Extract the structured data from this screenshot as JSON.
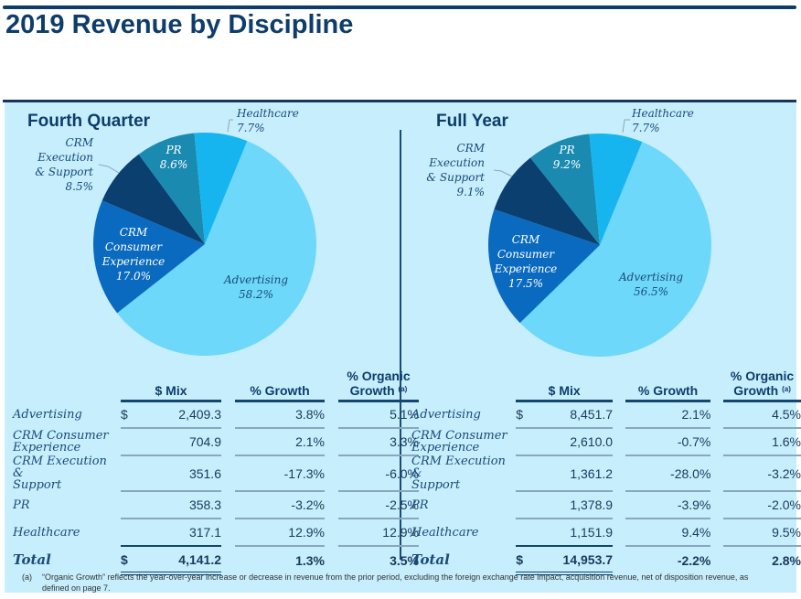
{
  "title": "2019 Revenue by Discipline",
  "colors": {
    "Advertising": "#6ed8fa",
    "CRM Consumer Experience": "#0a6abf",
    "CRM Execution & Support": "#0b3f70",
    "PR": "#1a8ab0",
    "Healthcare": "#17b5f0"
  },
  "chart_data": [
    {
      "type": "pie",
      "title": "Fourth Quarter",
      "categories": [
        "Advertising",
        "CRM Consumer Experience",
        "CRM Execution & Support",
        "PR",
        "Healthcare"
      ],
      "values": [
        58.2,
        17.0,
        8.5,
        8.6,
        7.7
      ],
      "labels": [
        {
          "name": "Advertising",
          "value": "58.2%"
        },
        {
          "name": "CRM\nConsumer\nExperience",
          "value": "17.0%"
        },
        {
          "name": "CRM\nExecution\n& Support",
          "value": "8.5%"
        },
        {
          "name": "PR",
          "value": "8.6%"
        },
        {
          "name": "Healthcare",
          "value": "7.7%"
        }
      ]
    },
    {
      "type": "pie",
      "title": "Full Year",
      "categories": [
        "Advertising",
        "CRM Consumer Experience",
        "CRM Execution & Support",
        "PR",
        "Healthcare"
      ],
      "values": [
        56.5,
        17.5,
        9.1,
        9.2,
        7.7
      ],
      "labels": [
        {
          "name": "Advertising",
          "value": "56.5%"
        },
        {
          "name": "CRM\nConsumer\nExperience",
          "value": "17.5%"
        },
        {
          "name": "CRM\nExecution\n& Support",
          "value": "9.1%"
        },
        {
          "name": "PR",
          "value": "9.2%"
        },
        {
          "name": "Healthcare",
          "value": "7.7%"
        }
      ]
    },
    {
      "type": "table",
      "title": "Fourth Quarter",
      "columns": [
        "$ Mix",
        "% Growth",
        "% Organic Growth (a)"
      ],
      "rows": [
        {
          "label": "Advertising",
          "mix": "2,409.3",
          "growth": "3.8%",
          "organic": "5.1%"
        },
        {
          "label": "CRM Consumer Experience",
          "mix": "704.9",
          "growth": "2.1%",
          "organic": "3.3%"
        },
        {
          "label": "CRM Execution & Support",
          "mix": "351.6",
          "growth": "-17.3%",
          "organic": "-6.0%"
        },
        {
          "label": "PR",
          "mix": "358.3",
          "growth": "-3.2%",
          "organic": "-2.5%"
        },
        {
          "label": "Healthcare",
          "mix": "317.1",
          "growth": "12.9%",
          "organic": "12.9%"
        }
      ],
      "total": {
        "label": "Total",
        "mix": "4,141.2",
        "growth": "1.3%",
        "organic": "3.5%"
      }
    },
    {
      "type": "table",
      "title": "Full Year",
      "columns": [
        "$ Mix",
        "% Growth",
        "% Organic Growth (a)"
      ],
      "rows": [
        {
          "label": "Advertising",
          "mix": "8,451.7",
          "growth": "2.1%",
          "organic": "4.5%"
        },
        {
          "label": "CRM Consumer Experience",
          "mix": "2,610.0",
          "growth": "-0.7%",
          "organic": "1.6%"
        },
        {
          "label": "CRM Execution & Support",
          "mix": "1,361.2",
          "growth": "-28.0%",
          "organic": "-3.2%"
        },
        {
          "label": "PR",
          "mix": "1,378.9",
          "growth": "-3.9%",
          "organic": "-2.0%"
        },
        {
          "label": "Healthcare",
          "mix": "1,151.9",
          "growth": "9.4%",
          "organic": "9.5%"
        }
      ],
      "total": {
        "label": "Total",
        "mix": "14,953.7",
        "growth": "-2.2%",
        "organic": "2.8%"
      }
    }
  ],
  "table_headers": {
    "mix": "$ Mix",
    "growth": "% Growth",
    "organic_line1": "% Organic",
    "organic_line2": "Growth",
    "organic_sup": "(a)",
    "dollar": "$"
  },
  "row_labels_display": [
    "Advertising",
    "CRM Consumer\nExperience",
    "CRM Execution &\nSupport",
    "PR",
    "Healthcare"
  ],
  "footnote": {
    "mark": "(a)",
    "line1": "“Organic Growth” reflects the year-over-year increase or decrease in revenue from the prior period, excluding the foreign exchange rate impact, acquisition revenue, net of disposition revenue, as",
    "line2": "defined on page 7."
  }
}
